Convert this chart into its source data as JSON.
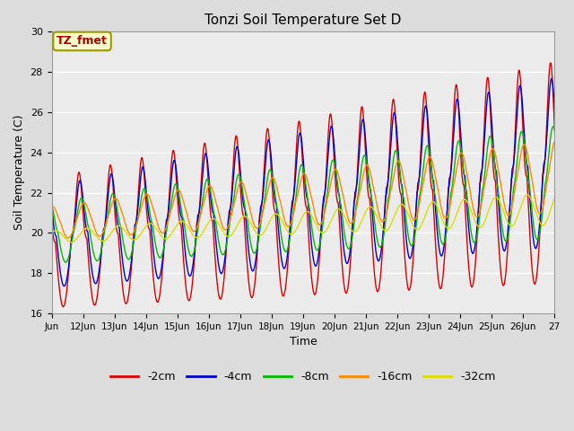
{
  "title": "Tonzi Soil Temperature Set D",
  "xlabel": "Time",
  "ylabel": "Soil Temperature (C)",
  "ylim": [
    16,
    30
  ],
  "yticks": [
    16,
    18,
    20,
    22,
    24,
    26,
    28,
    30
  ],
  "xtick_labels": [
    "Jun",
    "12Jun",
    "13Jun",
    "14Jun",
    "15Jun",
    "16Jun",
    "17Jun",
    "18Jun",
    "19Jun",
    "20Jun",
    "21Jun",
    "22Jun",
    "23Jun",
    "24Jun",
    "25Jun",
    "26Jun",
    "27"
  ],
  "series_names": [
    "-2cm",
    "-4cm",
    "-8cm",
    "-16cm",
    "-32cm"
  ],
  "series_colors": [
    "#dd0000",
    "#0000cc",
    "#00bb00",
    "#ff8800",
    "#dddd00"
  ],
  "legend_label": "TZ_fmet",
  "bg_color": "#dcdcdc",
  "plot_bg_color": "#ebebeb",
  "grid_color": "#ffffff",
  "annotation_box_color": "#ffffcc",
  "annotation_box_edge": "#999900"
}
